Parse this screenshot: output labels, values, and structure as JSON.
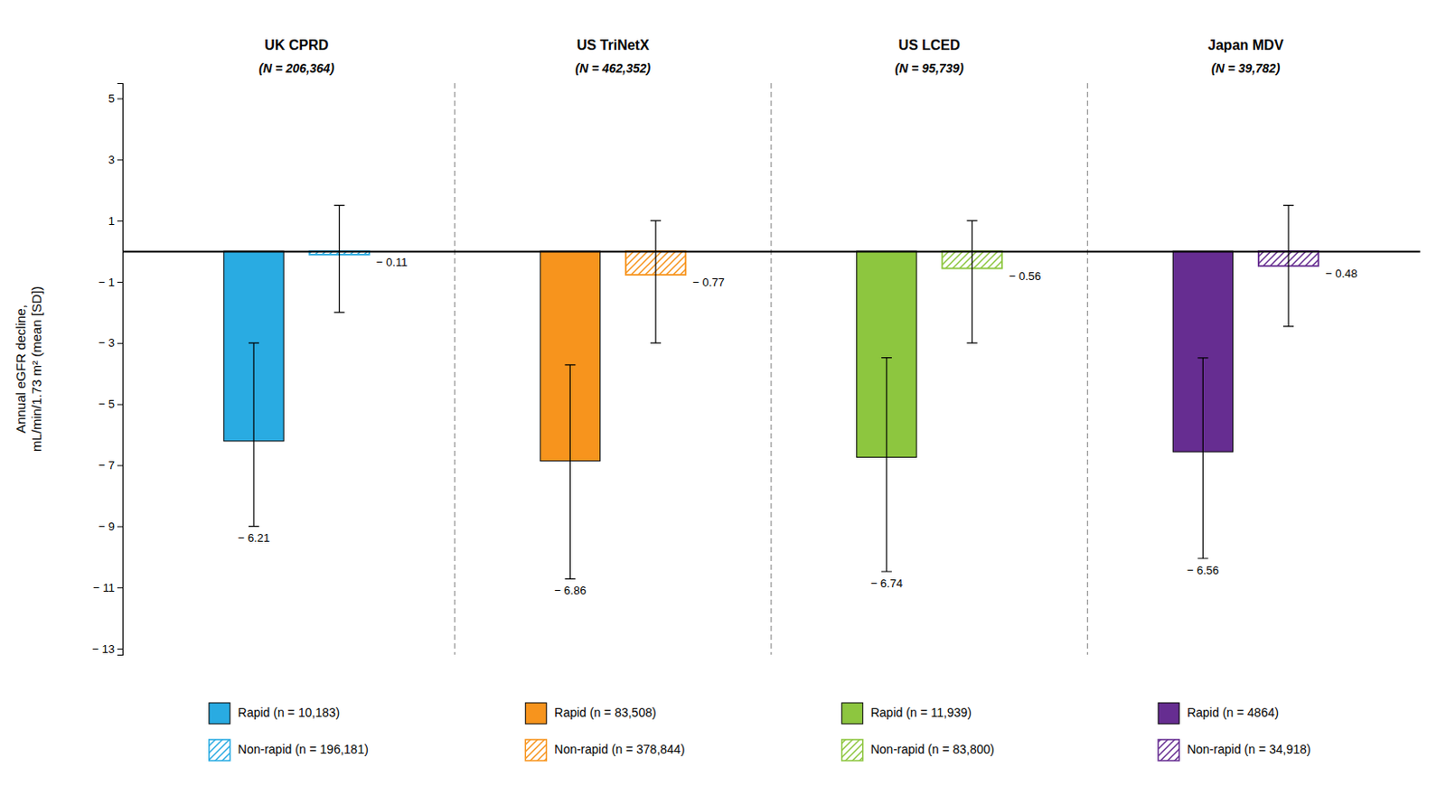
{
  "chart_data": {
    "type": "bar",
    "categories": [
      "UK CPRD",
      "US TriNetX",
      "US LCED",
      "Japan MDV"
    ],
    "category_subtitles": [
      "(N = 206,364)",
      "(N = 462,352)",
      "(N = 95,739)",
      "(N = 39,782)"
    ],
    "ylabel": "Annual eGFR decline,\nmL/min/1.73 m² (mean [SD])",
    "series": [
      {
        "legend_labels": [
          "Rapid (n = 10,183)",
          "Rapid (n = 83,508)",
          "Rapid (n = 11,939)",
          "Rapid (n = 4864)"
        ],
        "colors": [
          "#29ABE2",
          "#F7941D",
          "#8DC63F",
          "#662D91"
        ],
        "values": [
          -6.21,
          -6.86,
          -6.74,
          -6.56
        ],
        "value_labels": [
          "− 6.21",
          "− 6.86",
          "− 6.74",
          "− 6.56"
        ],
        "error_lower": [
          2.79,
          3.86,
          3.74,
          3.49
        ],
        "error_upper": [
          3.21,
          3.14,
          3.26,
          3.07
        ]
      },
      {
        "legend_labels": [
          "Non-rapid (n = 196,181)",
          "Non-rapid (n = 378,844)",
          "Non-rapid (n = 83,800)",
          "Non-rapid (n = 34,918)"
        ],
        "colors": [
          "#29ABE2",
          "#F7941D",
          "#8DC63F",
          "#662D91"
        ],
        "values": [
          -0.11,
          -0.77,
          -0.56,
          -0.48
        ],
        "value_labels": [
          "− 0.11",
          "− 0.77",
          "− 0.56",
          "− 0.48"
        ],
        "error_lower": [
          1.89,
          2.23,
          2.44,
          1.98
        ],
        "error_upper": [
          1.61,
          1.77,
          1.56,
          1.98
        ]
      }
    ],
    "ylim": [
      -13.2,
      5.5
    ],
    "yticks": [
      5,
      3,
      1,
      {
        "value": -1,
        "label": "− 1"
      },
      {
        "value": -3,
        "label": "− 3"
      },
      {
        "value": -5,
        "label": "− 5"
      },
      {
        "value": -7,
        "label": "− 7"
      },
      {
        "value": -9,
        "label": "− 9"
      },
      {
        "value": -11,
        "label": "− 11"
      },
      {
        "value": -13,
        "label": "− 13"
      }
    ],
    "grid": false,
    "legend": "bottom",
    "data_labels": true
  }
}
